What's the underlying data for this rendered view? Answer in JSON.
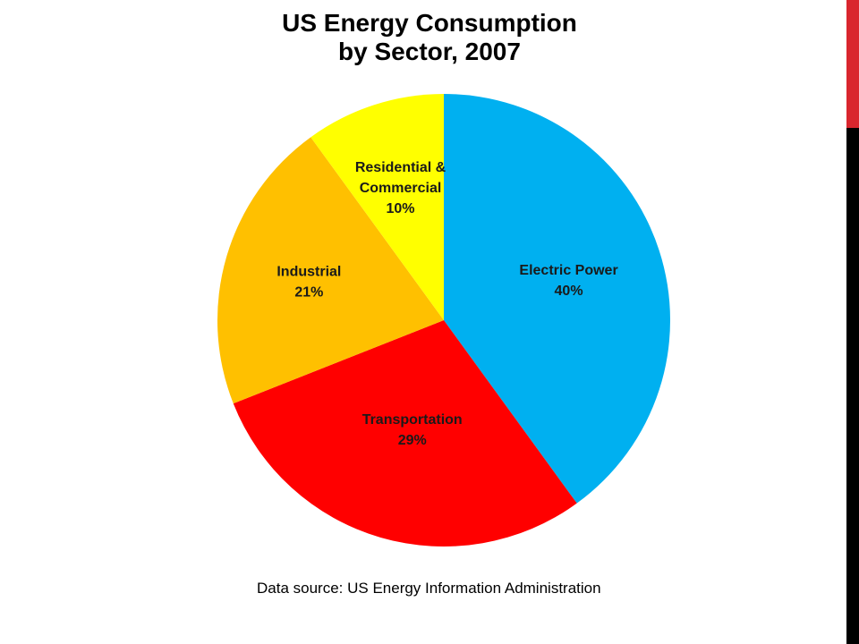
{
  "chart_data": {
    "type": "pie",
    "title_lines": [
      "US Energy Consumption",
      "by Sector, 2007"
    ],
    "source": "Data source: US Energy Information Administration",
    "slices": [
      {
        "label_lines": [
          "Electric Power",
          "40%"
        ],
        "value": 40,
        "color": "#00b0f0"
      },
      {
        "label_lines": [
          "Transportation",
          "29%"
        ],
        "value": 29,
        "color": "#ff0000"
      },
      {
        "label_lines": [
          "Industrial",
          "21%"
        ],
        "value": 21,
        "color": "#ffc000"
      },
      {
        "label_lines": [
          "Residential &",
          "Commercial",
          "10%"
        ],
        "value": 10,
        "color": "#ffff00"
      }
    ]
  },
  "theme": {
    "edge_bar_color": "#000000",
    "edge_accent_color": "#d9262e"
  }
}
